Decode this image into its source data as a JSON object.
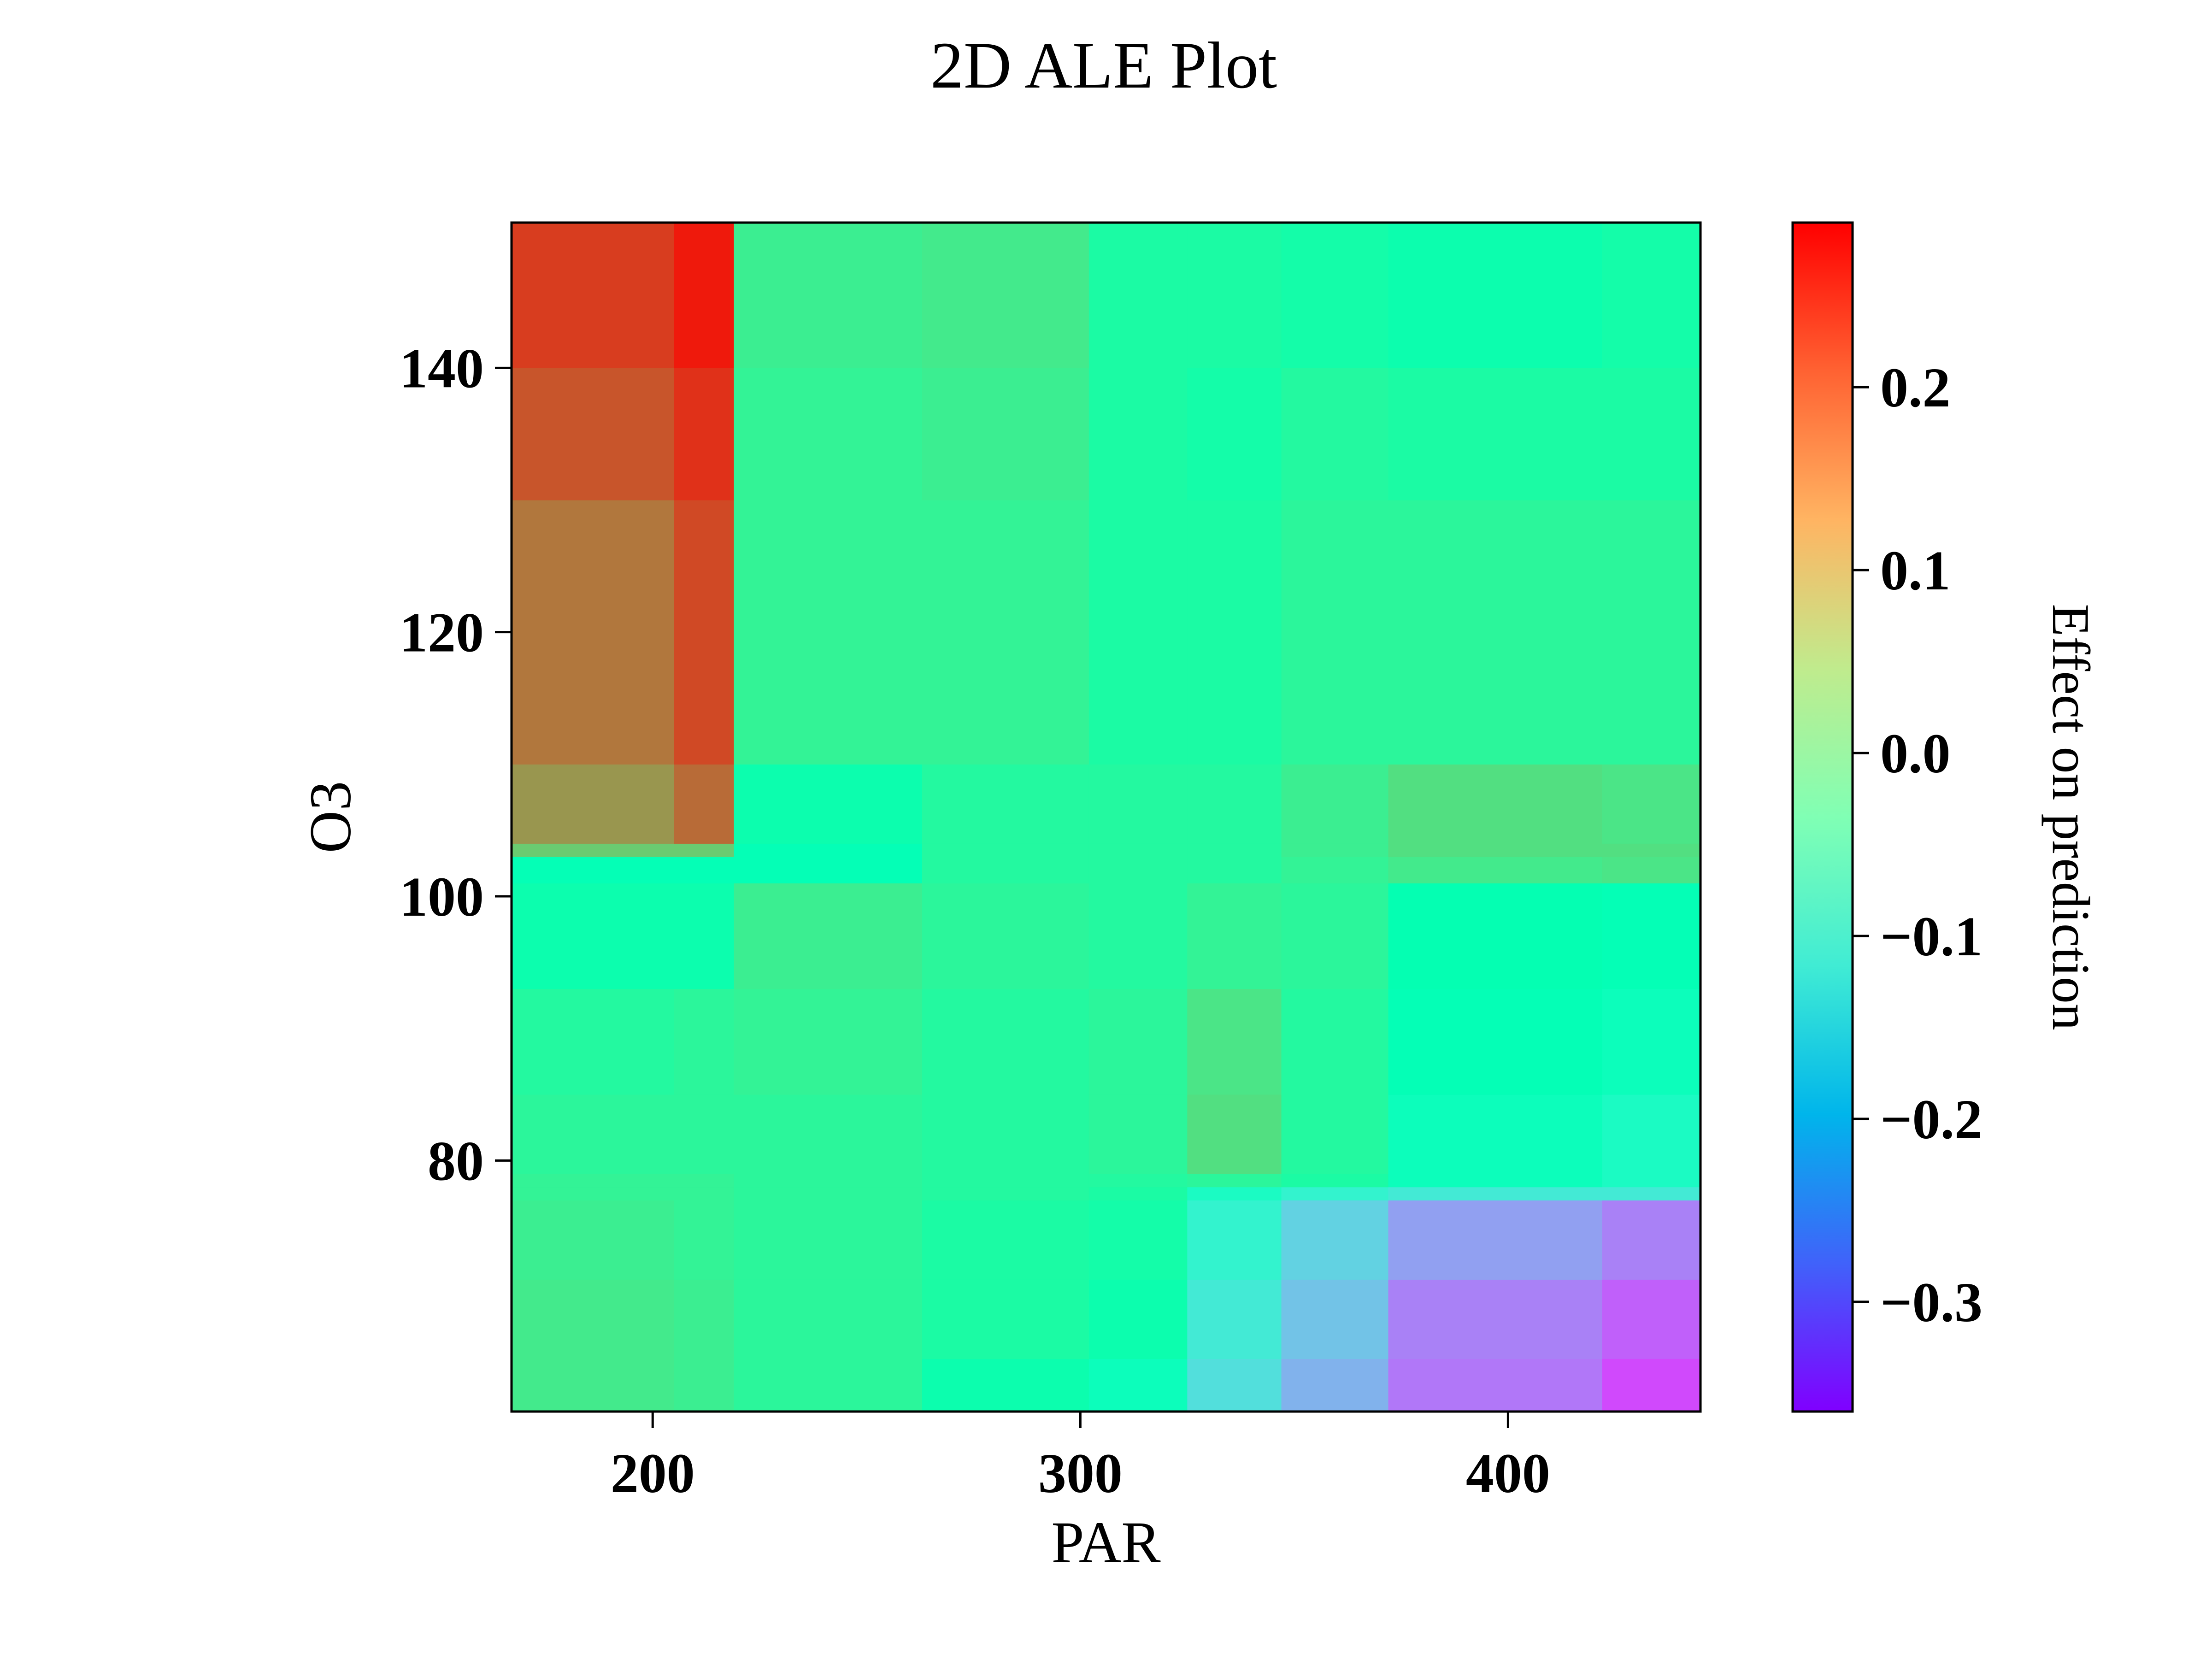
{
  "chart_data": {
    "type": "heatmap",
    "title": "2D ALE Plot",
    "xlabel": "PAR",
    "ylabel": "O3",
    "colorbar_label": "Effect on prediction",
    "colormap": "rainbow",
    "xlim": [
      167,
      445
    ],
    "ylim": [
      61,
      151
    ],
    "clim": [
      -0.36,
      0.29
    ],
    "x_ticks": [
      200,
      300,
      400
    ],
    "y_ticks": [
      80,
      100,
      120,
      140
    ],
    "colorbar_ticks": [
      -0.3,
      -0.2,
      -0.1,
      0.0,
      0.1,
      0.2
    ],
    "colorbar_tick_labels": [
      "−0.3",
      "−0.2",
      "−0.1",
      "0.0",
      "0.1",
      "0.2"
    ],
    "x_edges": [
      167,
      205,
      219,
      263,
      302,
      325,
      347,
      372,
      422,
      445
    ],
    "y_edges": [
      61,
      65,
      71,
      77,
      78,
      79,
      85,
      93,
      101,
      103,
      104,
      110,
      130,
      140,
      151
    ],
    "values": [
      [
        0.05,
        0.04,
        0.02,
        -0.02,
        -0.05,
        -0.14,
        -0.2,
        -0.26,
        -0.3
      ],
      [
        0.05,
        0.04,
        0.02,
        0.0,
        -0.02,
        -0.12,
        -0.18,
        -0.25,
        -0.28
      ],
      [
        0.04,
        0.03,
        0.02,
        0.0,
        -0.01,
        -0.1,
        -0.16,
        -0.22,
        -0.25
      ],
      [
        0.03,
        0.03,
        0.02,
        0.01,
        0.0,
        -0.07,
        -0.1,
        -0.12,
        -0.12
      ],
      [
        0.03,
        0.03,
        0.02,
        0.01,
        0.01,
        0.02,
        0.0,
        -0.05,
        -0.07
      ],
      [
        0.02,
        0.02,
        0.02,
        0.01,
        0.02,
        0.07,
        0.01,
        -0.05,
        -0.07
      ],
      [
        0.01,
        0.02,
        0.03,
        0.01,
        0.02,
        0.06,
        0.01,
        -0.04,
        -0.05
      ],
      [
        -0.02,
        -0.02,
        0.04,
        0.02,
        0.01,
        0.03,
        0.02,
        -0.03,
        -0.04
      ],
      [
        -0.04,
        -0.04,
        -0.04,
        0.01,
        0.01,
        0.01,
        0.03,
        0.05,
        0.06
      ],
      [
        0.1,
        0.1,
        -0.04,
        0.01,
        0.01,
        0.01,
        0.04,
        0.07,
        0.07
      ],
      [
        0.16,
        0.2,
        -0.02,
        0.01,
        0.01,
        0.01,
        0.04,
        0.07,
        0.06
      ],
      [
        0.19,
        0.23,
        0.03,
        0.03,
        0.0,
        0.0,
        0.02,
        0.02,
        0.02
      ],
      [
        0.22,
        0.25,
        0.03,
        0.04,
        0.0,
        -0.01,
        0.01,
        0.0,
        0.0
      ],
      [
        0.24,
        0.27,
        0.04,
        0.05,
        0.0,
        0.0,
        -0.01,
        -0.02,
        -0.01
      ]
    ]
  }
}
